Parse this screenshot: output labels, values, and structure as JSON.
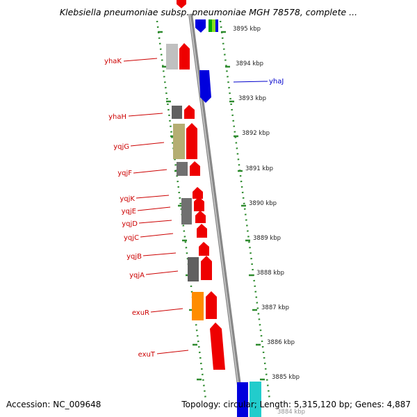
{
  "title": "Klebsiella pneumoniae subsp. pneumoniae MGH 78578, complete ...",
  "footer": {
    "accession": "Accession: NC_009648",
    "summary": "Topology: circular; Length: 5,315,120 bp; Genes: 4,887"
  },
  "kbp_labels": [
    "3895 kbp",
    "3894 kbp",
    "3893 kbp",
    "3892 kbp",
    "3891 kbp",
    "3890 kbp",
    "3889 kbp",
    "3888 kbp",
    "3887 kbp",
    "3886 kbp",
    "3885 kbp",
    "3884 kbp"
  ],
  "gene_labels": [
    {
      "text": "yhaK",
      "strand": "reverse"
    },
    {
      "text": "yhaJ",
      "strand": "forward"
    },
    {
      "text": "yhaH",
      "strand": "reverse"
    },
    {
      "text": "yqjG",
      "strand": "reverse"
    },
    {
      "text": "yqjF",
      "strand": "reverse"
    },
    {
      "text": "yqjK",
      "strand": "reverse"
    },
    {
      "text": "yqjE",
      "strand": "reverse"
    },
    {
      "text": "yqjD",
      "strand": "reverse"
    },
    {
      "text": "yqjC",
      "strand": "reverse"
    },
    {
      "text": "yqjB",
      "strand": "reverse"
    },
    {
      "text": "yqjA",
      "strand": "reverse"
    },
    {
      "text": "exuR",
      "strand": "reverse"
    },
    {
      "text": "exuT",
      "strand": "reverse"
    }
  ],
  "colors": {
    "reverse_gene": "#ee0000",
    "forward_gene": "#0000dd",
    "label_reverse": "#cc0000",
    "label_forward": "#0000cc",
    "backbone": "#888888",
    "dotted_track": "#2e8b2e"
  }
}
